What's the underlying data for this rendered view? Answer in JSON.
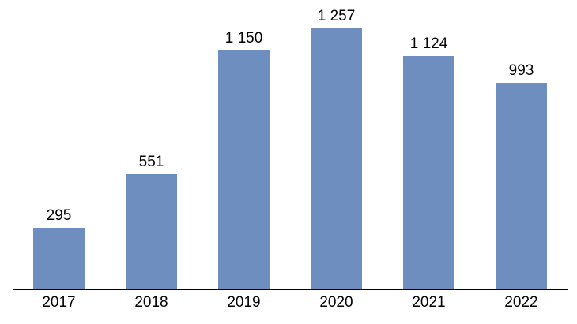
{
  "chart_data": {
    "type": "bar",
    "title": "",
    "xlabel": "",
    "ylabel": "",
    "categories": [
      "2017",
      "2018",
      "2019",
      "2020",
      "2021",
      "2022"
    ],
    "values": [
      295,
      551,
      1150,
      1257,
      1124,
      993
    ],
    "value_labels": [
      "295",
      "551",
      "1 150",
      "1 257",
      "1 124",
      "993"
    ],
    "ylim": [
      0,
      1300
    ],
    "grid": false,
    "legend": false,
    "data_labels_position": "above-bar",
    "bar_color": "#6d8ebe",
    "axis_line_color": "#000000",
    "label_color": "#000000",
    "background_color": "#ffffff"
  }
}
